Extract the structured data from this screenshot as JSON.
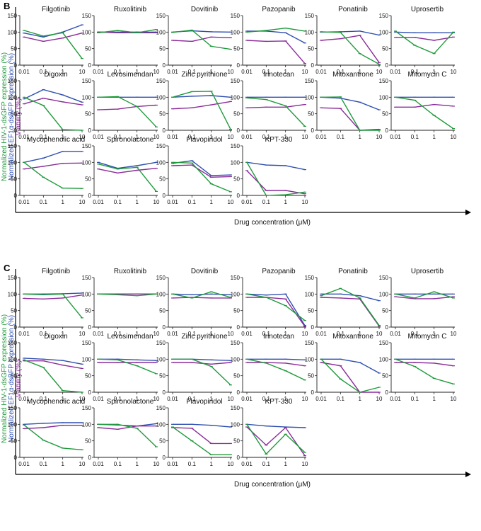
{
  "figure": {
    "x_axis_label": "Drug concentration (μM)",
    "y_axis_label_green": "Normalized HIV-1-dsGFP expression (%)",
    "y_axis_label_blue": "Normalized EF1α-dsBFP expression (%)",
    "y_axis_label_purple": "Viability (%)",
    "colors": {
      "green": "#1f9a3b",
      "blue": "#2e4fb0",
      "purple": "#8a2b9a"
    }
  },
  "chart_data": [
    {
      "panel": "B",
      "type": "line",
      "x": [
        0.01,
        0.1,
        1,
        10
      ],
      "x_tick_labels": [
        "0.01",
        "0.1",
        "1",
        "10"
      ],
      "x_scale": "log",
      "ylim": [
        0,
        150
      ],
      "y_ticks": [
        0,
        50,
        100,
        150
      ],
      "subplots": [
        {
          "title": "Filgotinib",
          "green": [
            105,
            88,
            98,
            20
          ],
          "blue": [
            97,
            85,
            100,
            122
          ],
          "purple": [
            85,
            72,
            82,
            97
          ]
        },
        {
          "title": "Ruxolitinib",
          "green": [
            98,
            105,
            98,
            108
          ],
          "blue": [
            100,
            100,
            100,
            100
          ],
          "purple": [
            100,
            98,
            98,
            98
          ]
        },
        {
          "title": "Dovitinib",
          "green": [
            99,
            106,
            57,
            48
          ],
          "blue": [
            100,
            104,
            101,
            100
          ],
          "purple": [
            75,
            72,
            85,
            83
          ]
        },
        {
          "title": "Pazopanib",
          "green": [
            100,
            105,
            112,
            103
          ],
          "blue": [
            103,
            103,
            98,
            67
          ],
          "purple": [
            75,
            72,
            73,
            5
          ]
        },
        {
          "title": "Ponatinib",
          "green": [
            101,
            99,
            35,
            3
          ],
          "blue": [
            100,
            101,
            103,
            91
          ],
          "purple": [
            75,
            80,
            90,
            8
          ]
        },
        {
          "title": "Uprosertib",
          "green": [
            103,
            60,
            35,
            100
          ],
          "blue": [
            100,
            98,
            98,
            98
          ],
          "purple": [
            84,
            84,
            75,
            85
          ]
        },
        {
          "title": "Digoxin",
          "green": [
            100,
            75,
            2,
            0
          ],
          "blue": [
            95,
            123,
            107,
            85
          ],
          "purple": [
            80,
            97,
            86,
            77
          ]
        },
        {
          "title": "Levosimendan",
          "green": [
            100,
            102,
            72,
            10
          ],
          "blue": [
            100,
            100,
            100,
            100
          ],
          "purple": [
            62,
            64,
            72,
            76
          ]
        },
        {
          "title": "Zinc pyrithione",
          "green": [
            100,
            117,
            118,
            3
          ],
          "blue": [
            100,
            103,
            105,
            100
          ],
          "purple": [
            65,
            68,
            77,
            87
          ]
        },
        {
          "title": "Irinotecan",
          "green": [
            98,
            93,
            74,
            12
          ],
          "blue": [
            100,
            100,
            100,
            100
          ],
          "purple": [
            68,
            70,
            70,
            78
          ]
        },
        {
          "title": "Mitoxantrone",
          "green": [
            100,
            101,
            0,
            0
          ],
          "blue": [
            100,
            97,
            85,
            62
          ],
          "purple": [
            68,
            66,
            0,
            3
          ]
        },
        {
          "title": "Mitomycin C",
          "green": [
            100,
            91,
            45,
            5
          ],
          "blue": [
            100,
            100,
            100,
            100
          ],
          "purple": [
            70,
            70,
            78,
            73
          ]
        },
        {
          "title": "Mycophenolic acid",
          "green": [
            100,
            55,
            22,
            21
          ],
          "blue": [
            100,
            113,
            133,
            133
          ],
          "purple": [
            80,
            88,
            97,
            98
          ]
        },
        {
          "title": "Spironolactone",
          "green": [
            95,
            80,
            85,
            12
          ],
          "blue": [
            100,
            82,
            90,
            100
          ],
          "purple": [
            80,
            68,
            76,
            82
          ]
        },
        {
          "title": "Flavopiridol",
          "green": [
            100,
            98,
            35,
            11
          ],
          "blue": [
            97,
            105,
            60,
            62
          ],
          "purple": [
            90,
            92,
            55,
            57
          ]
        },
        {
          "title": "KPT-330",
          "green": [
            100,
            0,
            2,
            10
          ],
          "blue": [
            100,
            92,
            90,
            78
          ],
          "purple": [
            75,
            15,
            15,
            5
          ]
        }
      ]
    },
    {
      "panel": "C",
      "type": "line",
      "x": [
        0.01,
        0.1,
        1,
        10
      ],
      "x_tick_labels": [
        "0.01",
        "0.1",
        "1",
        "10"
      ],
      "x_scale": "log",
      "ylim": [
        0,
        150
      ],
      "y_ticks": [
        0,
        50,
        100,
        150
      ],
      "subplots": [
        {
          "title": "Filgotinib",
          "green": [
            100,
            98,
            100,
            28
          ],
          "blue": [
            100,
            100,
            101,
            103
          ],
          "purple": [
            87,
            85,
            88,
            97
          ]
        },
        {
          "title": "Ruxolitinib",
          "green": [
            100,
            98,
            95,
            100
          ],
          "blue": [
            100,
            100,
            100,
            100
          ],
          "purple": [
            100,
            100,
            100,
            100
          ]
        },
        {
          "title": "Dovitinib",
          "green": [
            100,
            88,
            107,
            90
          ],
          "blue": [
            100,
            98,
            100,
            98
          ],
          "purple": [
            88,
            90,
            88,
            88
          ]
        },
        {
          "title": "Pazopanib",
          "green": [
            100,
            90,
            65,
            20
          ],
          "blue": [
            100,
            97,
            100,
            5
          ],
          "purple": [
            90,
            90,
            85,
            2
          ]
        },
        {
          "title": "Ponatinib",
          "green": [
            95,
            117,
            88,
            5
          ],
          "blue": [
            100,
            100,
            95,
            80
          ],
          "purple": [
            90,
            88,
            85,
            3
          ]
        },
        {
          "title": "Uprosertib",
          "green": [
            100,
            88,
            107,
            88
          ],
          "blue": [
            100,
            100,
            100,
            100
          ],
          "purple": [
            92,
            86,
            86,
            92
          ]
        },
        {
          "title": "Digoxin",
          "green": [
            98,
            75,
            5,
            0
          ],
          "blue": [
            103,
            100,
            96,
            85
          ],
          "purple": [
            95,
            95,
            82,
            72
          ]
        },
        {
          "title": "Levosimendan",
          "green": [
            100,
            98,
            80,
            56
          ],
          "blue": [
            100,
            100,
            98,
            96
          ],
          "purple": [
            90,
            90,
            90,
            90
          ]
        },
        {
          "title": "Zinc pyrithione",
          "green": [
            100,
            100,
            78,
            22
          ],
          "blue": [
            100,
            100,
            98,
            96
          ],
          "purple": [
            90,
            90,
            85,
            90
          ]
        },
        {
          "title": "Irinotecan",
          "green": [
            100,
            88,
            65,
            37
          ],
          "blue": [
            100,
            100,
            100,
            98
          ],
          "purple": [
            90,
            90,
            88,
            80
          ]
        },
        {
          "title": "Mitoxantrone",
          "green": [
            100,
            40,
            0,
            15
          ],
          "blue": [
            100,
            100,
            90,
            58
          ],
          "purple": [
            90,
            80,
            0,
            0
          ]
        },
        {
          "title": "Mitomycin C",
          "green": [
            100,
            78,
            42,
            25
          ],
          "blue": [
            100,
            100,
            100,
            100
          ],
          "purple": [
            90,
            90,
            88,
            80
          ]
        },
        {
          "title": "Mycophenolic acid",
          "green": [
            98,
            52,
            28,
            23
          ],
          "blue": [
            100,
            103,
            105,
            105
          ],
          "purple": [
            87,
            90,
            97,
            97
          ]
        },
        {
          "title": "Spironolactone",
          "green": [
            100,
            100,
            88,
            32
          ],
          "blue": [
            100,
            98,
            95,
            102
          ],
          "purple": [
            90,
            85,
            95,
            95
          ]
        },
        {
          "title": "Flavopiridol",
          "green": [
            92,
            50,
            8,
            8
          ],
          "blue": [
            100,
            100,
            97,
            92
          ],
          "purple": [
            90,
            88,
            42,
            42
          ]
        },
        {
          "title": "KPT-330",
          "green": [
            100,
            10,
            70,
            15
          ],
          "blue": [
            100,
            95,
            92,
            90
          ],
          "purple": [
            92,
            37,
            90,
            5
          ]
        }
      ]
    }
  ]
}
